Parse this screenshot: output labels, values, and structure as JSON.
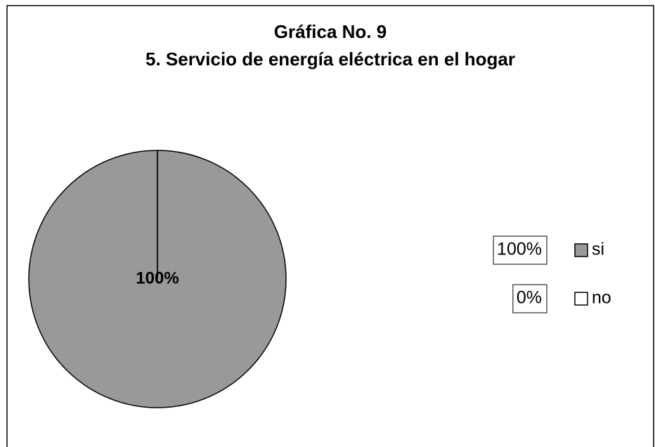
{
  "chart_data": {
    "type": "pie",
    "title": [
      "Gráfica No. 9",
      "5. Servicio de energía eléctrica en el hogar"
    ],
    "categories": [
      "si",
      "no"
    ],
    "values": [
      100,
      0
    ],
    "value_labels": [
      "100%",
      "0%"
    ],
    "colors": [
      "#999999",
      "#ffffff"
    ]
  }
}
